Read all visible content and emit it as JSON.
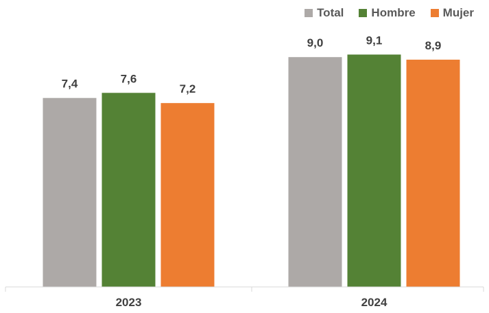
{
  "chart_data": {
    "type": "bar",
    "categories": [
      "2023",
      "2024"
    ],
    "series": [
      {
        "name": "Total",
        "values": [
          7.4,
          9.0
        ],
        "labels": [
          "7,4",
          "9,0"
        ],
        "color": "#ADA9A7"
      },
      {
        "name": "Hombre",
        "values": [
          7.6,
          9.1
        ],
        "labels": [
          "7,6",
          "9,1"
        ],
        "color": "#548235"
      },
      {
        "name": "Mujer",
        "values": [
          7.2,
          8.9
        ],
        "labels": [
          "7,2",
          "8,9"
        ],
        "color": "#ED7D31"
      }
    ],
    "title": "",
    "xlabel": "",
    "ylabel": "",
    "ylim": [
      0,
      10
    ],
    "grid": false,
    "legend_position": "top-right"
  }
}
